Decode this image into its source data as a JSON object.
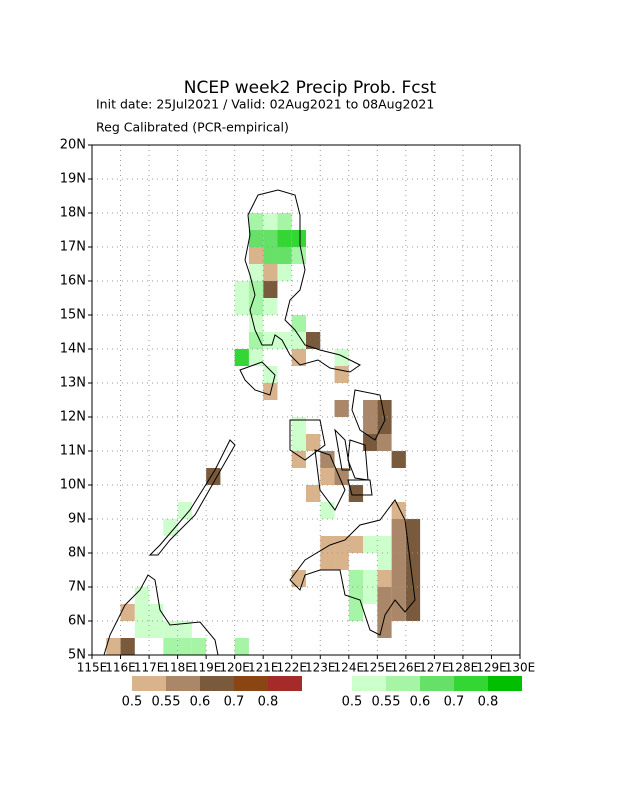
{
  "chart_data": {
    "type": "map",
    "title": "NCEP week2 Precip Prob. Fcst",
    "subtitle": "Init date: 25Jul2021 / Valid: 02Aug2021 to 08Aug2021",
    "subtitle2": "Reg Calibrated (PCR-empirical)",
    "xlim": [
      115,
      130
    ],
    "ylim": [
      5,
      20
    ],
    "xticks": [
      {
        "value": 115,
        "label": "115E"
      },
      {
        "value": 116,
        "label": "116E"
      },
      {
        "value": 117,
        "label": "117E"
      },
      {
        "value": 118,
        "label": "118E"
      },
      {
        "value": 119,
        "label": "119E"
      },
      {
        "value": 120,
        "label": "120E"
      },
      {
        "value": 121,
        "label": "121E"
      },
      {
        "value": 122,
        "label": "122E"
      },
      {
        "value": 123,
        "label": "123E"
      },
      {
        "value": 124,
        "label": "124E"
      },
      {
        "value": 125,
        "label": "125E"
      },
      {
        "value": 126,
        "label": "126E"
      },
      {
        "value": 127,
        "label": "127E"
      },
      {
        "value": 128,
        "label": "128E"
      },
      {
        "value": 129,
        "label": "129E"
      },
      {
        "value": 130,
        "label": "130E"
      }
    ],
    "yticks": [
      {
        "value": 5,
        "label": "5N"
      },
      {
        "value": 6,
        "label": "6N"
      },
      {
        "value": 7,
        "label": "7N"
      },
      {
        "value": 8,
        "label": "8N"
      },
      {
        "value": 9,
        "label": "9N"
      },
      {
        "value": 10,
        "label": "10N"
      },
      {
        "value": 11,
        "label": "11N"
      },
      {
        "value": 12,
        "label": "12N"
      },
      {
        "value": 13,
        "label": "13N"
      },
      {
        "value": 14,
        "label": "14N"
      },
      {
        "value": 15,
        "label": "15N"
      },
      {
        "value": 16,
        "label": "16N"
      },
      {
        "value": 17,
        "label": "17N"
      },
      {
        "value": 18,
        "label": "18N"
      },
      {
        "value": 19,
        "label": "19N"
      },
      {
        "value": 20,
        "label": "20N"
      }
    ],
    "grid": true,
    "cell_size": 0.5,
    "dry_legend": {
      "colors": [
        "#d9b38c",
        "#a98768",
        "#7a5a3d",
        "#8b4513",
        "#a52a2a"
      ],
      "labels": [
        0.5,
        0.55,
        0.6,
        0.7,
        0.8
      ]
    },
    "wet_legend": {
      "colors": [
        "#ccffcc",
        "#a6f5a6",
        "#66e066",
        "#33d633",
        "#00bf00"
      ],
      "labels": [
        0.5,
        0.55,
        0.6,
        0.7,
        0.8
      ]
    },
    "dry_cells": [
      [
        115.5,
        5,
        0.52
      ],
      [
        116,
        5,
        0.6
      ],
      [
        116,
        6,
        0.52
      ],
      [
        121,
        15.5,
        0.65
      ],
      [
        120.5,
        16.5,
        0.52
      ],
      [
        121,
        16,
        0.52
      ],
      [
        121,
        12.5,
        0.52
      ],
      [
        122.5,
        14,
        0.65
      ],
      [
        122,
        13.5,
        0.52
      ],
      [
        123.5,
        13,
        0.52
      ],
      [
        123.5,
        12,
        0.57
      ],
      [
        124.5,
        12,
        0.57
      ],
      [
        125,
        12,
        0.65
      ],
      [
        124.5,
        11.5,
        0.57
      ],
      [
        125,
        11.5,
        0.65
      ],
      [
        124.5,
        11,
        0.65
      ],
      [
        125,
        11,
        0.57
      ],
      [
        125.5,
        10.5,
        0.65
      ],
      [
        122.5,
        11,
        0.52
      ],
      [
        122,
        10.5,
        0.52
      ],
      [
        123,
        10.5,
        0.57
      ],
      [
        123,
        10,
        0.52
      ],
      [
        123.5,
        10,
        0.57
      ],
      [
        122.5,
        9.5,
        0.52
      ],
      [
        124,
        9.5,
        0.65
      ],
      [
        119,
        10,
        0.65
      ],
      [
        123,
        8,
        0.52
      ],
      [
        123.5,
        8,
        0.52
      ],
      [
        124,
        8,
        0.52
      ],
      [
        123,
        7.5,
        0.52
      ],
      [
        123.5,
        7.5,
        0.52
      ],
      [
        122,
        7,
        0.52
      ],
      [
        125.5,
        9,
        0.52
      ],
      [
        125.5,
        8.5,
        0.57
      ],
      [
        126,
        8.5,
        0.65
      ],
      [
        125.5,
        8,
        0.57
      ],
      [
        126,
        8,
        0.65
      ],
      [
        125.5,
        7.5,
        0.57
      ],
      [
        126,
        7.5,
        0.65
      ],
      [
        125,
        7,
        0.52
      ],
      [
        125.5,
        7,
        0.57
      ],
      [
        126,
        7,
        0.65
      ],
      [
        125,
        6.5,
        0.57
      ],
      [
        125.5,
        6.5,
        0.57
      ],
      [
        126,
        6.5,
        0.65
      ],
      [
        126,
        6,
        0.65
      ],
      [
        125,
        6,
        0.57
      ],
      [
        125.5,
        6,
        0.57
      ],
      [
        125,
        5.5,
        0.57
      ]
    ],
    "wet_cells": [
      [
        120.5,
        17.5,
        0.55
      ],
      [
        121,
        17.5,
        0.52
      ],
      [
        121.5,
        17.5,
        0.55
      ],
      [
        120.5,
        17,
        0.6
      ],
      [
        121,
        17,
        0.6
      ],
      [
        121.5,
        17,
        0.7
      ],
      [
        122,
        17,
        0.7
      ],
      [
        121,
        16.5,
        0.6
      ],
      [
        121.5,
        16.5,
        0.6
      ],
      [
        122,
        16.5,
        0.55
      ],
      [
        120.5,
        16,
        0.52
      ],
      [
        121.5,
        16,
        0.52
      ],
      [
        120,
        15.5,
        0.52
      ],
      [
        120.5,
        15.5,
        0.55
      ],
      [
        120,
        15,
        0.52
      ],
      [
        120.5,
        15,
        0.55
      ],
      [
        121,
        15,
        0.52
      ],
      [
        120.5,
        14.5,
        0.52
      ],
      [
        122,
        14.5,
        0.55
      ],
      [
        120.5,
        14,
        0.55
      ],
      [
        121,
        14,
        0.52
      ],
      [
        121.5,
        14,
        0.52
      ],
      [
        122,
        14,
        0.52
      ],
      [
        120,
        13.5,
        0.7
      ],
      [
        120.5,
        13.5,
        0.52
      ],
      [
        121,
        13,
        0.52
      ],
      [
        123.5,
        13.5,
        0.52
      ],
      [
        122,
        11.5,
        0.52
      ],
      [
        122,
        11,
        0.52
      ],
      [
        123,
        9,
        0.52
      ],
      [
        124,
        6,
        0.55
      ],
      [
        124,
        6.5,
        0.55
      ],
      [
        124,
        7,
        0.55
      ],
      [
        124.5,
        7,
        0.52
      ],
      [
        124.5,
        6.5,
        0.52
      ],
      [
        125,
        8,
        0.52
      ],
      [
        125,
        7.5,
        0.52
      ],
      [
        124.5,
        8,
        0.52
      ],
      [
        117.5,
        8.5,
        0.52
      ],
      [
        118,
        9,
        0.52
      ],
      [
        116.5,
        6.5,
        0.52
      ],
      [
        116.5,
        6,
        0.52
      ],
      [
        117,
        6,
        0.52
      ],
      [
        116.5,
        5.5,
        0.52
      ],
      [
        117,
        5.5,
        0.52
      ],
      [
        117.5,
        5.5,
        0.52
      ],
      [
        118,
        5.5,
        0.52
      ],
      [
        117.5,
        5,
        0.55
      ],
      [
        118,
        5,
        0.55
      ],
      [
        118.5,
        5,
        0.55
      ],
      [
        120,
        5,
        0.55
      ]
    ]
  }
}
